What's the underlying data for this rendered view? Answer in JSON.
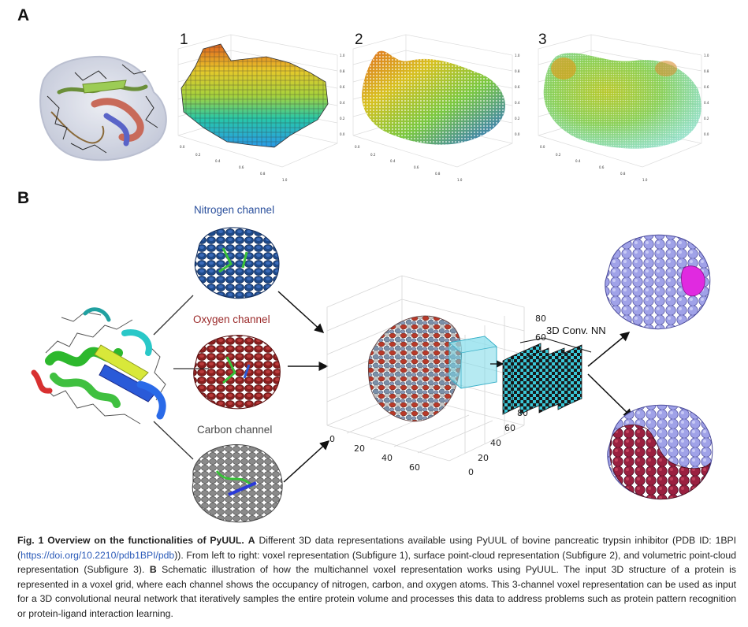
{
  "panel_a": {
    "letter": "A",
    "subfigures": [
      "1",
      "2",
      "3"
    ],
    "axis_ticks_y": [
      "1.0",
      "0.8",
      "0.6",
      "0.4",
      "0.2",
      "0.0"
    ],
    "axis_ticks_x": [
      "0.0",
      "0.2",
      "0.4",
      "0.6",
      "0.8",
      "1.0"
    ]
  },
  "panel_b": {
    "letter": "B",
    "channels": {
      "nitrogen": "Nitrogen channel",
      "oxygen": "Oxygen channel",
      "carbon": "Carbon channel"
    },
    "channel_colors": {
      "nitrogen": "#2a4f9c",
      "oxygen": "#9b2a2a",
      "carbon": "#4a4a4a"
    },
    "network_label": "3D Conv. NN",
    "grid_ticks_z": [
      "80",
      "60"
    ],
    "grid_ticks_x": [
      "0",
      "20",
      "40",
      "60"
    ],
    "grid_ticks_y": [
      "80",
      "60",
      "40",
      "20",
      "0"
    ]
  },
  "caption": {
    "title": "Fig. 1 Overview on the functionalities of PyUUL.",
    "part_a_label": "A",
    "part_a_text_1": "Different 3D data representations available using PyUUL of bovine pancreatic trypsin inhibitor (PDB ID: 1BPI (",
    "link": "https://doi.org/10.2210/pdb1BPI/pdb",
    "part_a_text_2": ")). From left to right: voxel representation (Subfigure 1), surface point-cloud representation (Subfigure 2), and volumetric point-cloud representation (Subfigure 3).",
    "part_b_label": "B",
    "part_b_text": "Schematic illustration of how the multichannel voxel representation works using PyUUL. The input 3D structure of a protein is represented in a voxel grid, where each channel shows the occupancy of nitrogen, carbon, and oxygen atoms. This 3-channel voxel representation can be used as input for a 3D convolutional neural network that iteratively samples the entire protein volume and processes this data to address problems such as protein pattern recognition or protein-ligand interaction learning."
  }
}
